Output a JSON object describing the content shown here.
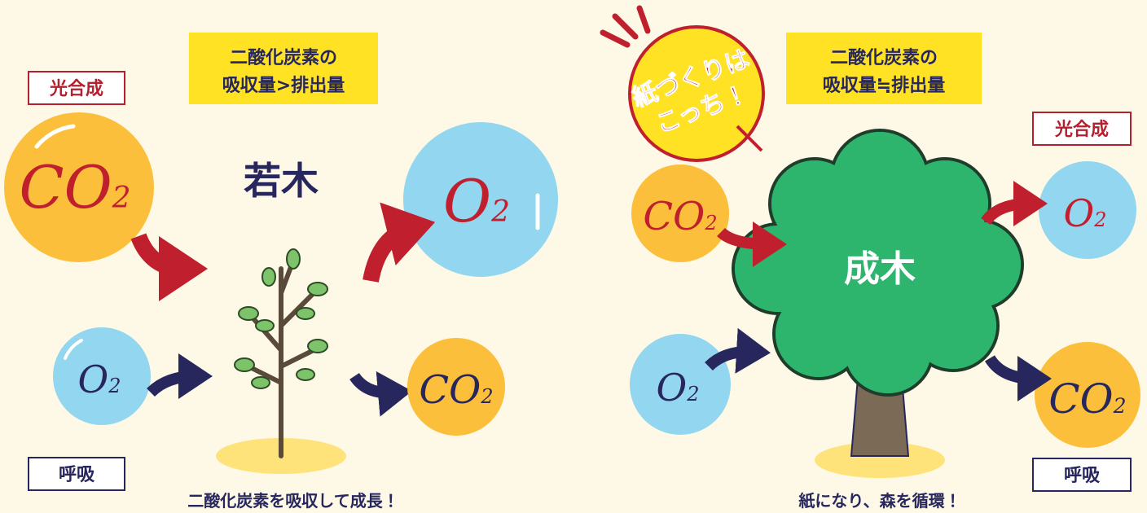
{
  "left": {
    "photosynthesis": "光合成",
    "balance": [
      "二酸化炭素の",
      "吸収量>排出量"
    ],
    "tree": "若木",
    "respiration": "呼吸",
    "caption": "二酸化炭素を吸収して成長！",
    "co2_in": {
      "base": "CO",
      "sub": "2"
    },
    "o2_out": {
      "base": "O",
      "sub": "2"
    },
    "o2_in": {
      "base": "O",
      "sub": "2"
    },
    "co2_out": {
      "base": "CO",
      "sub": "2"
    }
  },
  "right": {
    "badge": [
      "紙づくりは",
      "こっち！"
    ],
    "photosynthesis": "光合成",
    "balance": [
      "二酸化炭素の",
      "吸収量≒排出量"
    ],
    "tree": "成木",
    "respiration": "呼吸",
    "caption": "紙になり、森を循環！",
    "co2_in": {
      "base": "CO",
      "sub": "2"
    },
    "o2_out": {
      "base": "O",
      "sub": "2"
    },
    "o2_in": {
      "base": "O",
      "sub": "2"
    },
    "co2_out": {
      "base": "CO",
      "sub": "2"
    }
  }
}
